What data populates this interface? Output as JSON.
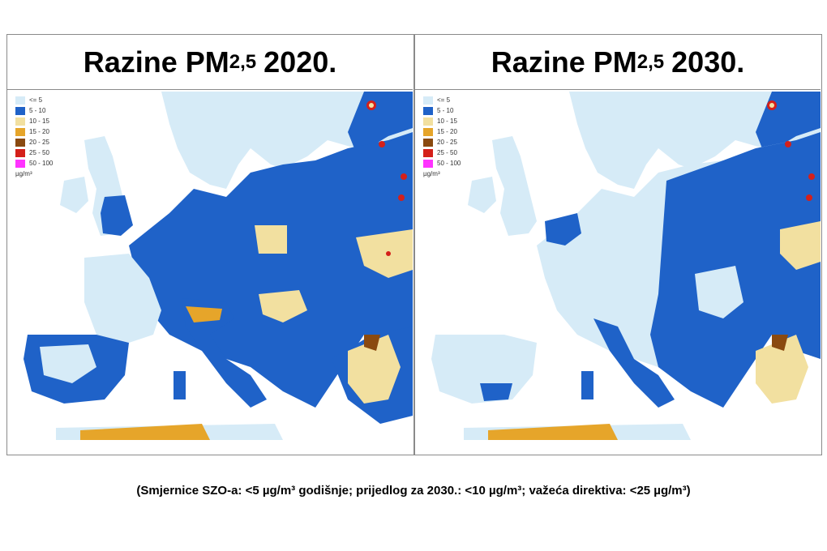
{
  "panels": [
    {
      "title_main": "Razine PM",
      "title_sub": "2,5",
      "title_year": "2020."
    },
    {
      "title_main": "Razine PM",
      "title_sub": "2,5",
      "title_year": "2030."
    }
  ],
  "legend": {
    "items": [
      {
        "label": "<= 5",
        "color": "#d6ebf7"
      },
      {
        "label": "5 - 10",
        "color": "#1f62c8"
      },
      {
        "label": "10 - 15",
        "color": "#f2e0a0"
      },
      {
        "label": "15 - 20",
        "color": "#e6a52a"
      },
      {
        "label": "20 - 25",
        "color": "#8a4a10"
      },
      {
        "label": "25 - 50",
        "color": "#d4201a"
      },
      {
        "label": "50 - 100",
        "color": "#ff33ff"
      }
    ],
    "unit": "µg/m³"
  },
  "footnote": "(Smjernice SZO-a: <5 µg/m³ godišnje; prijedlog za 2030.: <10 µg/m³; važeća direktiva: <25 µg/m³)"
}
